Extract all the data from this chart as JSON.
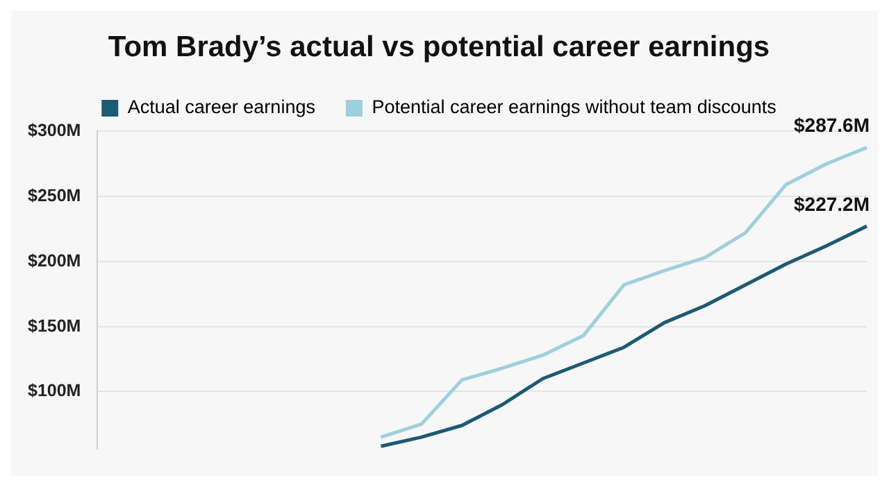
{
  "chart_data": {
    "type": "line",
    "title": "Tom Brady’s actual vs potential career earnings",
    "categories": [
      null,
      null,
      null,
      null,
      null,
      null,
      null,
      null,
      null,
      null,
      null,
      null,
      null,
      null,
      null,
      null,
      null,
      null,
      null,
      null
    ],
    "series": [
      {
        "name": "Actual career earnings",
        "color": "#1d5a73",
        "values": [
          null,
          null,
          null,
          null,
          null,
          null,
          null,
          58,
          65,
          74,
          90,
          110,
          122,
          134,
          153,
          166,
          182,
          198,
          212,
          227.2
        ],
        "value_labels": [
          null,
          null,
          null,
          null,
          null,
          null,
          null,
          null,
          null,
          null,
          null,
          null,
          null,
          null,
          null,
          null,
          null,
          null,
          null,
          "$227.2M"
        ]
      },
      {
        "name": "Potential career earnings without team discounts",
        "color": "#9dd0dc",
        "values": [
          null,
          null,
          null,
          null,
          null,
          null,
          null,
          65,
          75,
          109,
          118,
          128,
          143,
          182,
          193,
          203,
          222,
          259,
          275,
          287.6
        ],
        "value_labels": [
          null,
          null,
          null,
          null,
          null,
          null,
          null,
          null,
          null,
          null,
          null,
          null,
          null,
          null,
          null,
          null,
          null,
          null,
          null,
          "$287.6M"
        ]
      }
    ],
    "ylim": [
      56,
      300
    ],
    "yticks": [
      {
        "value": 100,
        "label": "$100M"
      },
      {
        "value": 150,
        "label": "$150M"
      },
      {
        "value": 200,
        "label": "$200M"
      },
      {
        "value": 250,
        "label": "$250M"
      },
      {
        "value": 300,
        "label": "$300M"
      }
    ],
    "grid": "y",
    "legend": "top",
    "tick_labels": "y",
    "marker": "none",
    "line_style": "solid"
  }
}
